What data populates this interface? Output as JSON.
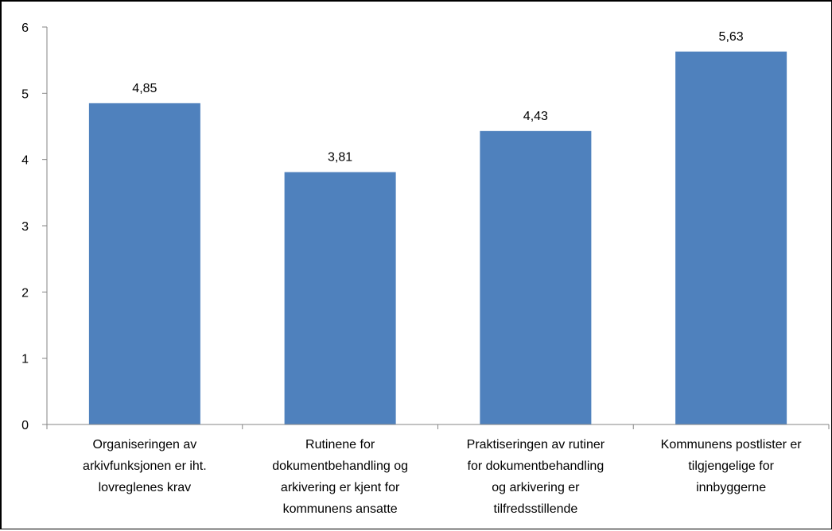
{
  "chart_data": {
    "type": "bar",
    "categories": [
      "Organiseringen av arkivfunksjonen er iht. lovreglenes krav",
      "Rutinene for dokumentbehandling og arkivering er kjent for kommunens ansatte",
      "Praktiseringen av rutiner for dokumentbehandling og arkivering er tilfredsstillende",
      "Kommunens postlister er tilgjengelige for innbyggerne"
    ],
    "category_lines": [
      [
        "Organiseringen av",
        "arkivfunksjonen er iht.",
        "lovreglenes krav"
      ],
      [
        "Rutinene for",
        "dokumentbehandling og",
        "arkivering er kjent for",
        "kommunens ansatte"
      ],
      [
        "Praktiseringen av rutiner",
        "for dokumentbehandling",
        "og arkivering er",
        "tilfredsstillende"
      ],
      [
        "Kommunens postlister er",
        "tilgjengelige for",
        "innbyggerne"
      ]
    ],
    "values": [
      4.85,
      3.81,
      4.43,
      5.63
    ],
    "value_labels": [
      "4,85",
      "3,81",
      "4,43",
      "5,63"
    ],
    "ylim": [
      0,
      6
    ],
    "yticks": [
      "0",
      "1",
      "2",
      "3",
      "4",
      "5",
      "6"
    ],
    "grid": false,
    "legend": "none",
    "bar_color": "#4F81BD"
  }
}
